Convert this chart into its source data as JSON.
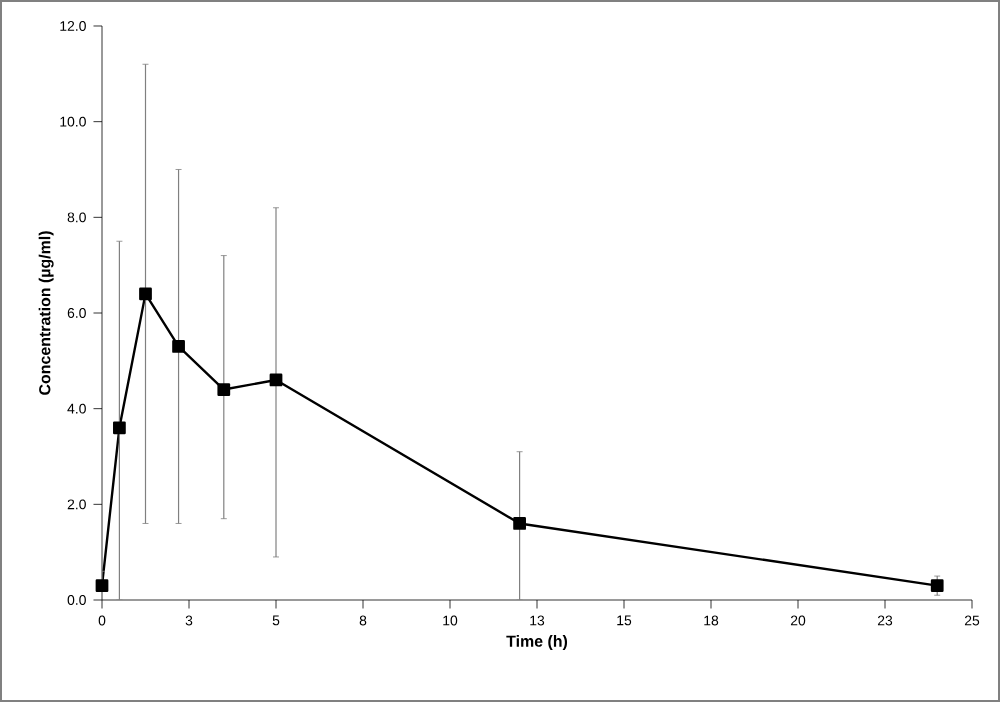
{
  "chart_data": {
    "type": "line",
    "xlabel": "Time (h)",
    "ylabel": "Concentration (µg/ml)",
    "x": [
      0,
      0.5,
      1.25,
      2.2,
      3.5,
      5.0,
      12.0,
      24.0
    ],
    "series": [
      {
        "color": "#000000",
        "values": [
          0.3,
          3.6,
          6.4,
          5.3,
          4.4,
          4.6,
          1.6,
          0.3
        ],
        "errors": [
          [
            0.3,
            0.6
          ],
          [
            0.0,
            7.5
          ],
          [
            1.6,
            11.2
          ],
          [
            1.6,
            9.0
          ],
          [
            1.7,
            7.2
          ],
          [
            0.9,
            8.2
          ],
          [
            0.0,
            3.1
          ],
          [
            0.1,
            0.5
          ]
        ]
      }
    ],
    "marker": "square",
    "line_style": "solid",
    "grid": false,
    "xlim": [
      0,
      25
    ],
    "ylim": [
      0,
      12
    ],
    "xticks": [
      0,
      {
        "value": 2.5,
        "label": "3"
      },
      5,
      {
        "value": 7.5,
        "label": "8"
      },
      10,
      {
        "value": 12.5,
        "label": "13"
      },
      15,
      {
        "value": 17.5,
        "label": "18"
      },
      20,
      {
        "value": 22.5,
        "label": "23"
      },
      25
    ],
    "yticks": [
      {
        "value": 0,
        "label": "0.0"
      },
      {
        "value": 2,
        "label": "2.0"
      },
      {
        "value": 4,
        "label": "4.0"
      },
      {
        "value": 6,
        "label": "6.0"
      },
      {
        "value": 8,
        "label": "8.0"
      },
      {
        "value": 10,
        "label": "10.0"
      },
      {
        "value": 12,
        "label": "12.0"
      }
    ]
  }
}
